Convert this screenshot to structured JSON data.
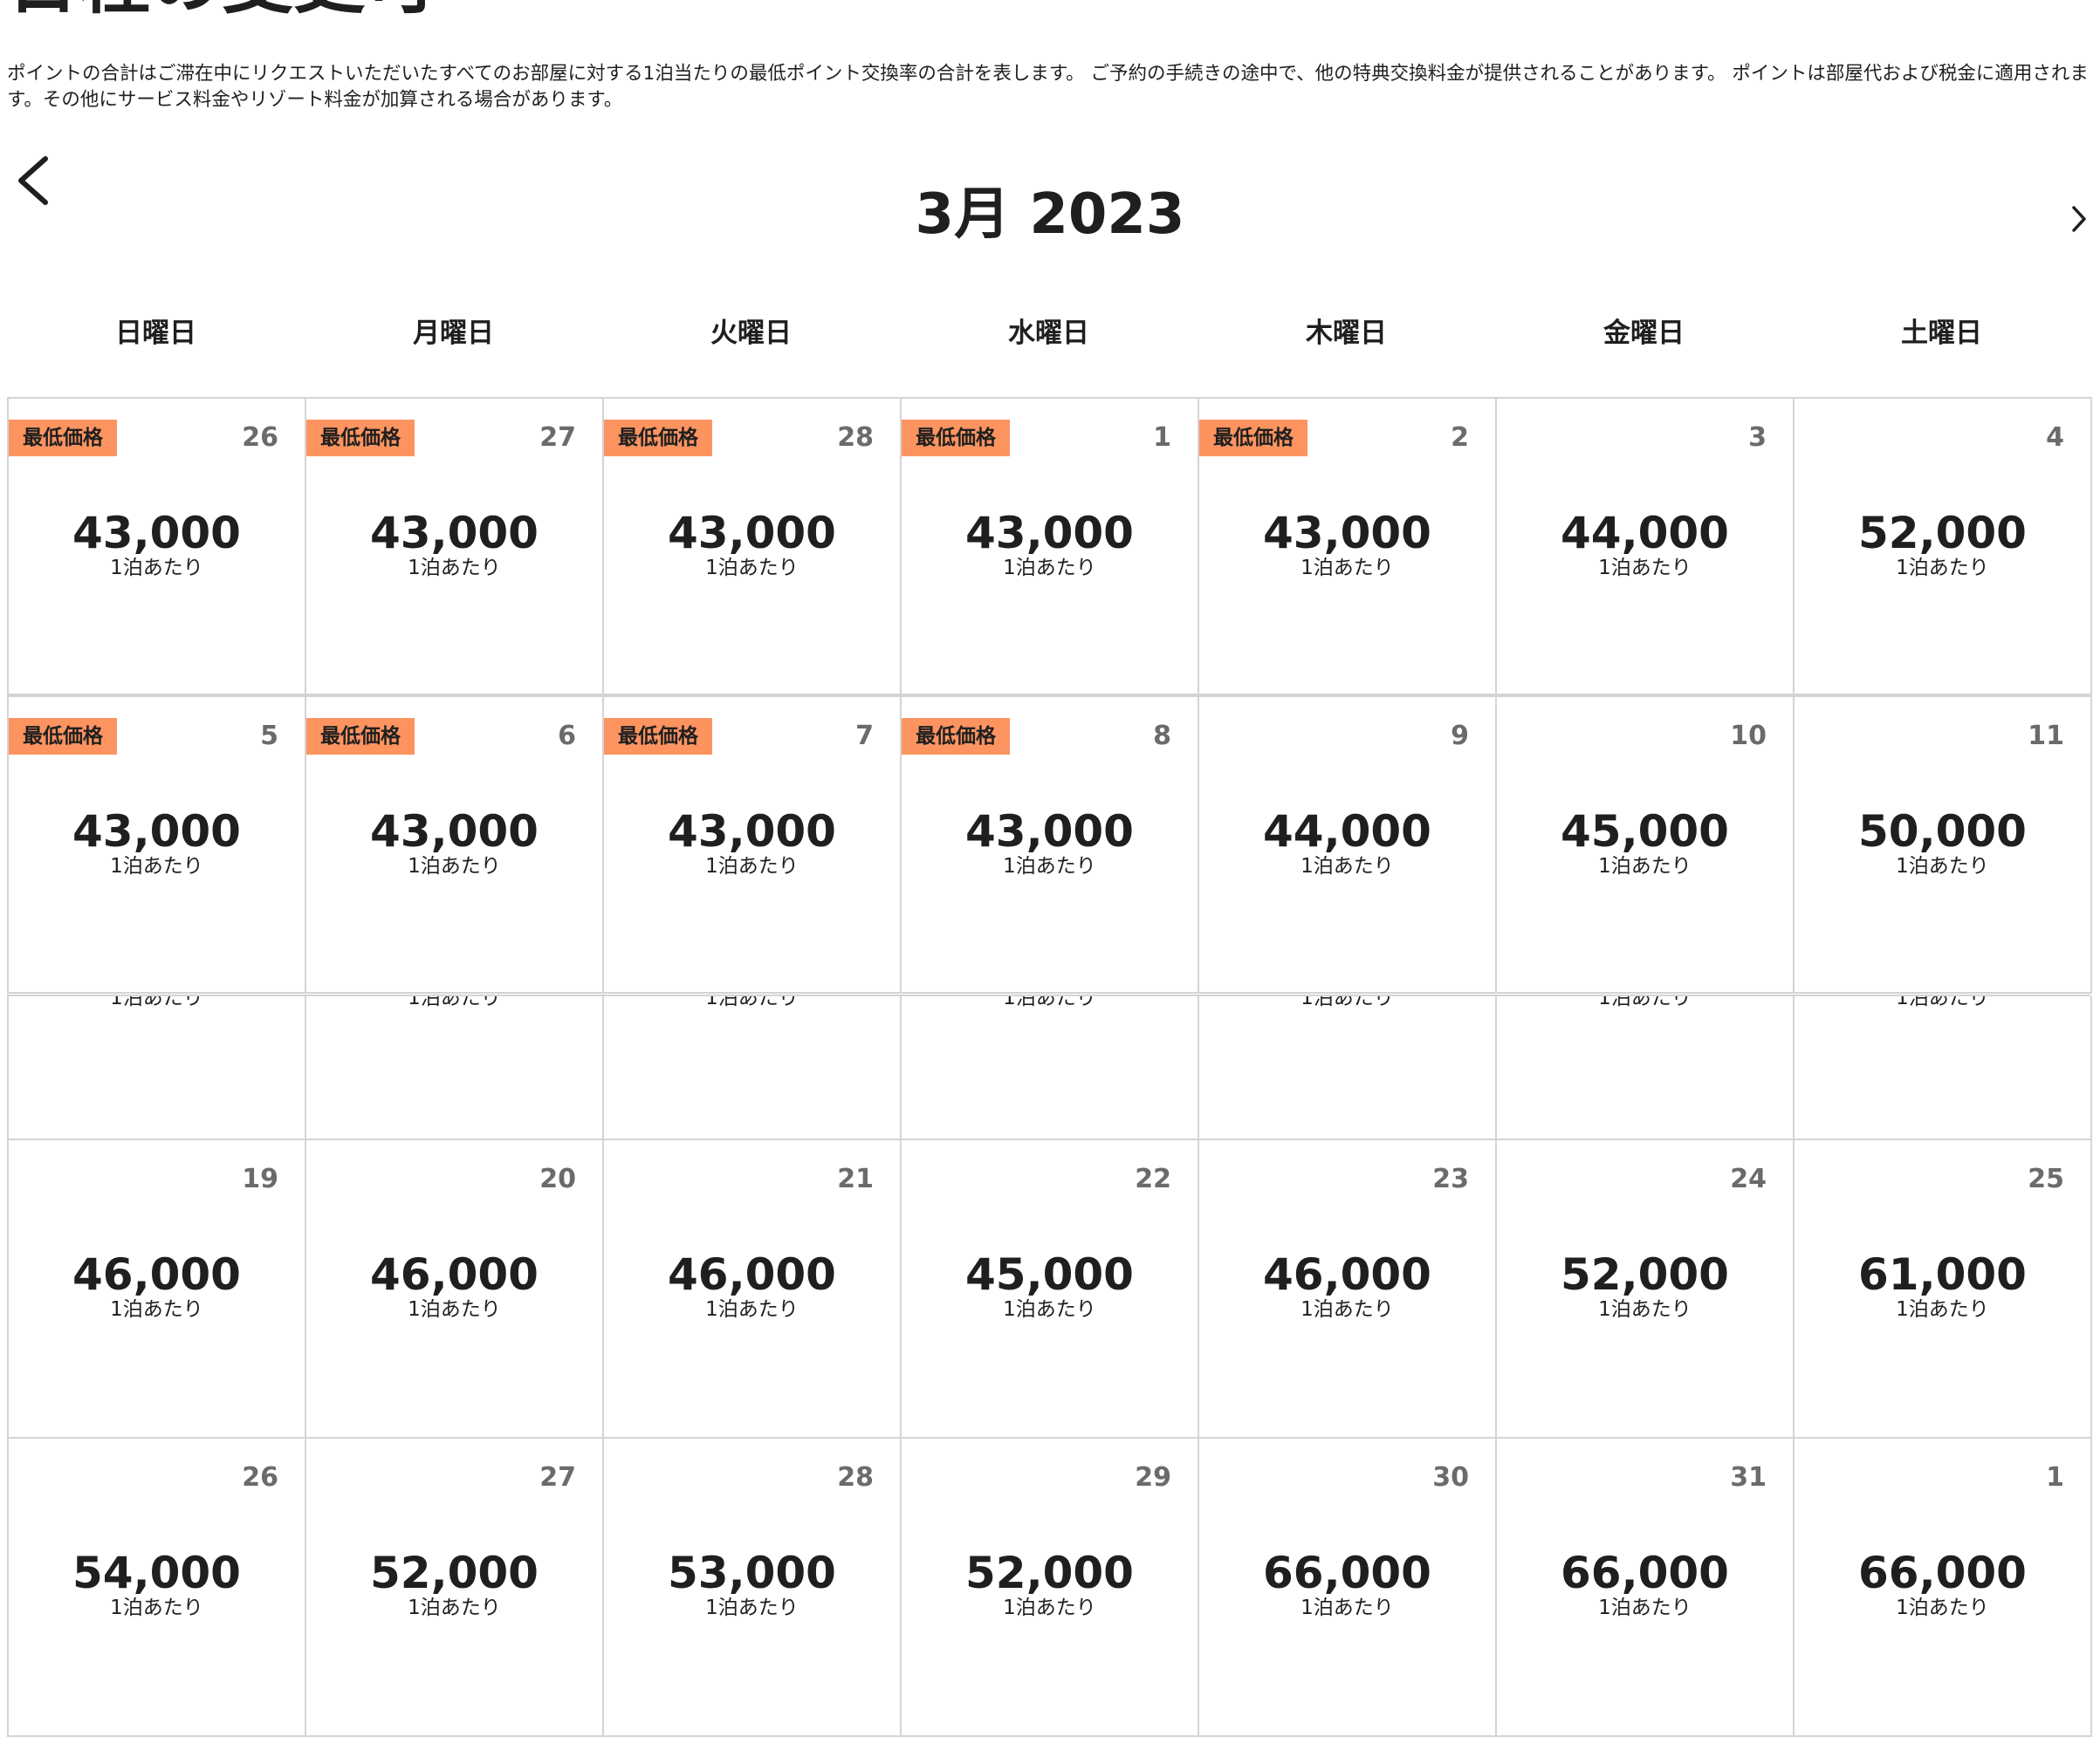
{
  "page": {
    "heading_fragment": "日程の変更可",
    "notice": "ポイントの合計はご滞在中にリクエストいただいたすべてのお部屋に対する1泊当たりの最低ポイント交換率の合計を表します。 ご予約の手続きの途中で、他の特典交換料金が提供されることがあります。 ポイントは部屋代および税金に適用されます。その他にサービス料金やリゾート料金が加算される場合があります。"
  },
  "calendar": {
    "month_title": "3月 2023",
    "prev_icon": "chevron-left-icon",
    "next_icon": "chevron-right-icon",
    "weekdays": [
      "日曜日",
      "月曜日",
      "火曜日",
      "水曜日",
      "木曜日",
      "金曜日",
      "土曜日"
    ],
    "badge_label": "最低価格",
    "per_night_label": "1泊あたり",
    "badge_color": "#fd9460",
    "weeks_top": [
      [
        {
          "day": "26",
          "price": "43,000",
          "per": "1泊あたり",
          "badge": "最低価格"
        },
        {
          "day": "27",
          "price": "43,000",
          "per": "1泊あたり",
          "badge": "最低価格"
        },
        {
          "day": "28",
          "price": "43,000",
          "per": "1泊あたり",
          "badge": "最低価格"
        },
        {
          "day": "1",
          "price": "43,000",
          "per": "1泊あたり",
          "badge": "最低価格"
        },
        {
          "day": "2",
          "price": "43,000",
          "per": "1泊あたり",
          "badge": "最低価格"
        },
        {
          "day": "3",
          "price": "44,000",
          "per": "1泊あたり"
        },
        {
          "day": "4",
          "price": "52,000",
          "per": "1泊あたり"
        }
      ],
      [
        {
          "day": "5",
          "price": "43,000",
          "per": "1泊あたり",
          "badge": "最低価格"
        },
        {
          "day": "6",
          "price": "43,000",
          "per": "1泊あたり",
          "badge": "最低価格"
        },
        {
          "day": "7",
          "price": "43,000",
          "per": "1泊あたり",
          "badge": "最低価格"
        },
        {
          "day": "8",
          "price": "43,000",
          "per": "1泊あたり",
          "badge": "最低価格"
        },
        {
          "day": "9",
          "price": "44,000",
          "per": "1泊あたり"
        },
        {
          "day": "10",
          "price": "45,000",
          "per": "1泊あたり"
        },
        {
          "day": "11",
          "price": "50,000",
          "per": "1泊あたり"
        }
      ]
    ],
    "weeks_bottom": [
      [
        {
          "day": "19",
          "price": "46,000",
          "per": "1泊あたり"
        },
        {
          "day": "20",
          "price": "46,000",
          "per": "1泊あたり"
        },
        {
          "day": "21",
          "price": "46,000",
          "per": "1泊あたり"
        },
        {
          "day": "22",
          "price": "45,000",
          "per": "1泊あたり"
        },
        {
          "day": "23",
          "price": "46,000",
          "per": "1泊あたり"
        },
        {
          "day": "24",
          "price": "52,000",
          "per": "1泊あたり"
        },
        {
          "day": "25",
          "price": "61,000",
          "per": "1泊あたり"
        }
      ],
      [
        {
          "day": "26",
          "price": "54,000",
          "per": "1泊あたり"
        },
        {
          "day": "27",
          "price": "52,000",
          "per": "1泊あたり"
        },
        {
          "day": "28",
          "price": "53,000",
          "per": "1泊あたり"
        },
        {
          "day": "29",
          "price": "52,000",
          "per": "1泊あたり"
        },
        {
          "day": "30",
          "price": "66,000",
          "per": "1泊あたり"
        },
        {
          "day": "31",
          "price": "66,000",
          "per": "1泊あたり"
        },
        {
          "day": "1",
          "price": "66,000",
          "per": "1泊あたり"
        }
      ]
    ]
  }
}
